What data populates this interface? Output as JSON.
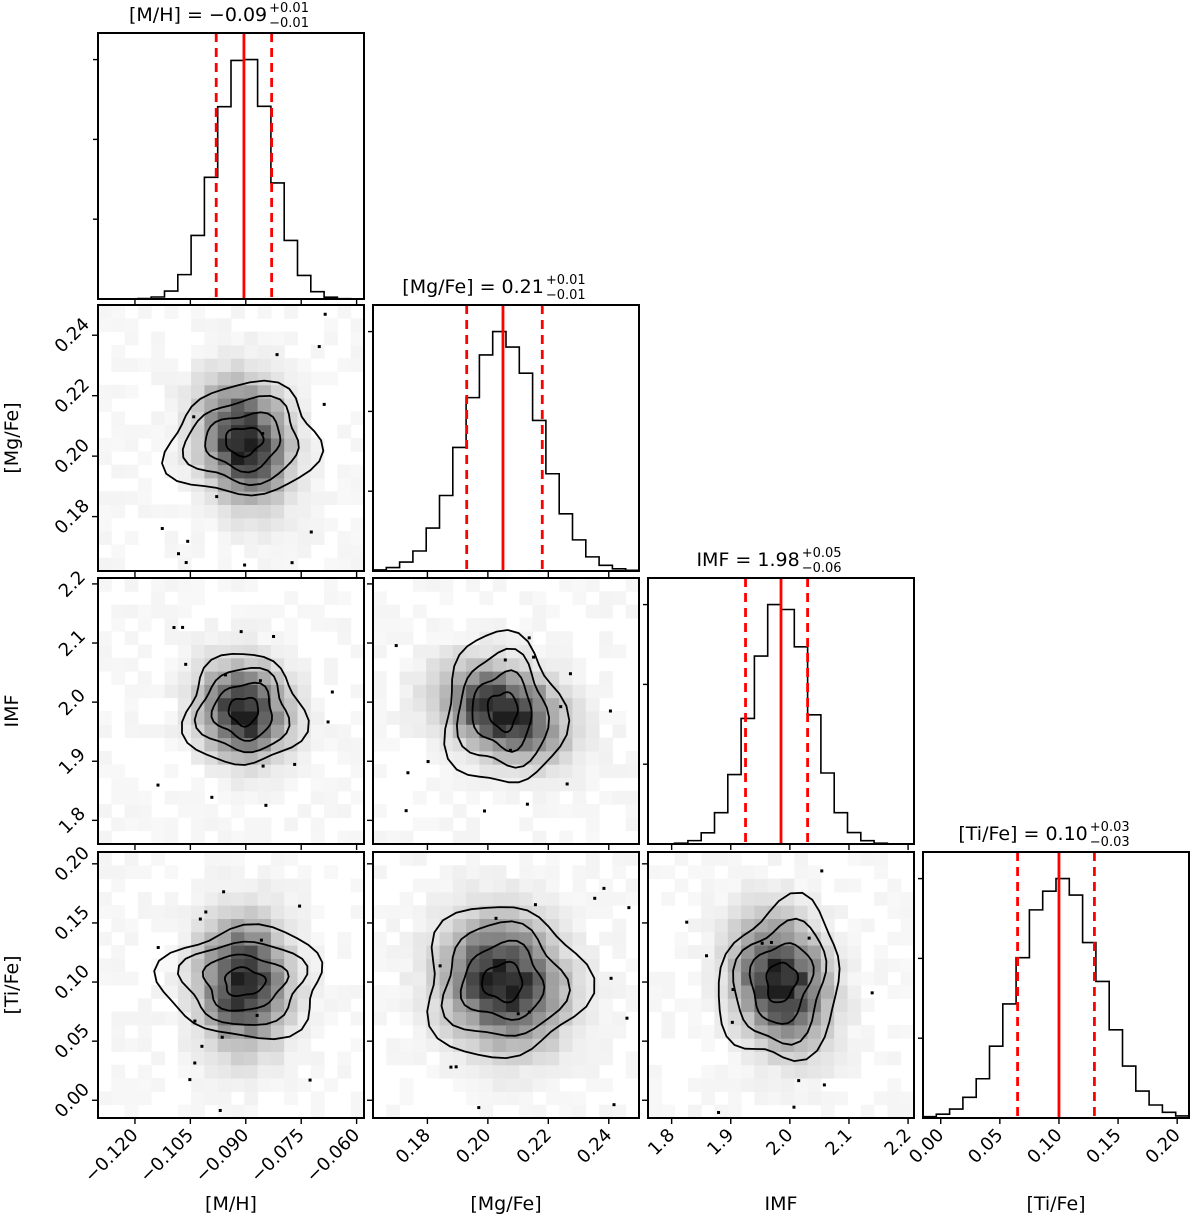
{
  "chart_data": {
    "type": "corner",
    "parameters": [
      {
        "key": "MH",
        "label": "[M/H]",
        "median": "−0.09",
        "plus": "+0.01",
        "minus": "−0.01",
        "mean": -0.0905,
        "sigma": 0.0075,
        "lo": -0.098,
        "mid": -0.0905,
        "hi": -0.083,
        "range": [
          -0.13,
          -0.058
        ],
        "ticks": [
          -0.12,
          -0.105,
          -0.09,
          -0.075,
          -0.06
        ],
        "tick_labels": [
          "−0.120",
          "−0.105",
          "−0.090",
          "−0.075",
          "−0.060"
        ]
      },
      {
        "key": "MgFe",
        "label": "[Mg/Fe]",
        "median": "0.21",
        "plus": "+0.01",
        "minus": "−0.01",
        "mean": 0.205,
        "sigma": 0.0125,
        "lo": 0.193,
        "mid": 0.205,
        "hi": 0.218,
        "range": [
          0.162,
          0.25
        ],
        "ticks": [
          0.18,
          0.2,
          0.22,
          0.24
        ],
        "tick_labels": [
          "0.18",
          "0.20",
          "0.22",
          "0.24"
        ]
      },
      {
        "key": "IMF",
        "label": "IMF",
        "median": "1.98",
        "plus": "+0.05",
        "minus": "−0.06",
        "mean": 1.985,
        "sigma": 0.05,
        "lo": 1.925,
        "mid": 1.985,
        "hi": 2.03,
        "range": [
          1.76,
          2.21
        ],
        "ticks": [
          1.8,
          1.9,
          2.0,
          2.1,
          2.2
        ],
        "tick_labels": [
          "1.8",
          "1.9",
          "2.0",
          "2.1",
          "2.2"
        ]
      },
      {
        "key": "TiFe",
        "label": "[Ti/Fe]",
        "median": "0.10",
        "plus": "+0.03",
        "minus": "−0.03",
        "mean": 0.1,
        "sigma": 0.034,
        "lo": 0.065,
        "mid": 0.1,
        "hi": 0.13,
        "range": [
          -0.015,
          0.21
        ],
        "ticks": [
          0.0,
          0.05,
          0.1,
          0.15,
          0.2
        ],
        "tick_labels": [
          "0.00",
          "0.05",
          "0.10",
          "0.15",
          "0.20"
        ]
      }
    ],
    "title_separator": " = ",
    "quantile_line_color": "#ff0000",
    "histogram_line_color": "#000000",
    "density_colormap": "greys",
    "contour_color": "#000000",
    "correlations": {
      "MgFe|MH": -0.15,
      "IMF|MH": -0.1,
      "IMF|MgFe": -0.3,
      "TiFe|MH": 0.0,
      "TiFe|MgFe": -0.1,
      "TiFe|IMF": -0.2
    }
  }
}
